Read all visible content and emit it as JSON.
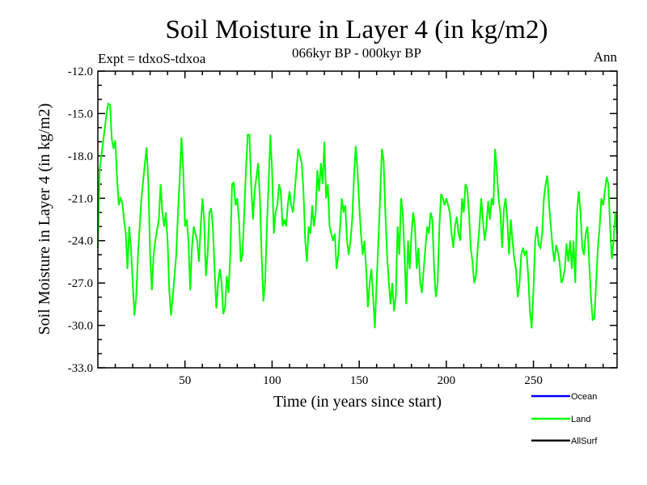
{
  "chart_data": {
    "type": "line",
    "title": "Soil Moisture in Layer 4 (in kg/m2)",
    "subtitle": "066kyr BP - 000kyr BP",
    "left_note": "Expt = tdxoS-tdxoa",
    "right_note": "Ann",
    "xlabel": "Time (in years since start)",
    "ylabel": "Soil Moisture in Layer 4 (in kg/m2)",
    "xlim": [
      0,
      298
    ],
    "ylim": [
      -33,
      -12
    ],
    "xticks": [
      50,
      100,
      150,
      200,
      250
    ],
    "xtick_labels": [
      "50",
      "100",
      "150",
      "200",
      "250"
    ],
    "yticks": [
      -12,
      -15,
      -18,
      -21,
      -24,
      -27,
      -30,
      -33
    ],
    "ytick_labels": [
      "-12.0",
      "-15.0",
      "-18.0",
      "-21.0",
      "-24.0",
      "-27.0",
      "-30.0",
      "-33.0"
    ],
    "legend": {
      "placement": "bottom-right",
      "entries": [
        {
          "name": "Ocean",
          "color": "#0000ff"
        },
        {
          "name": "Land",
          "color": "#00ff00"
        },
        {
          "name": "AllSurf",
          "color": "#000000"
        }
      ]
    },
    "series": [
      {
        "name": "Land",
        "color": "#00ff00",
        "points": [
          [
            0,
            -24.5
          ],
          [
            1,
            -19
          ],
          [
            3,
            -17
          ],
          [
            5,
            -15
          ],
          [
            6,
            -14.3
          ],
          [
            7,
            -14.4
          ],
          [
            8,
            -16.8
          ],
          [
            9,
            -17.5
          ],
          [
            10,
            -16.9
          ],
          [
            11,
            -19.5
          ],
          [
            12,
            -21.5
          ],
          [
            13,
            -21
          ],
          [
            14,
            -21.3
          ],
          [
            15,
            -22.5
          ],
          [
            16,
            -23.5
          ],
          [
            17,
            -26
          ],
          [
            18,
            -23
          ],
          [
            19,
            -24.5
          ],
          [
            20,
            -27
          ],
          [
            21,
            -29.3
          ],
          [
            22,
            -28
          ],
          [
            23,
            -25
          ],
          [
            25,
            -21
          ],
          [
            27,
            -18.5
          ],
          [
            28,
            -17.4
          ],
          [
            29,
            -20
          ],
          [
            30,
            -25
          ],
          [
            31,
            -27.5
          ],
          [
            32,
            -25
          ],
          [
            33,
            -24
          ],
          [
            35,
            -22.5
          ],
          [
            36,
            -20
          ],
          [
            37,
            -22
          ],
          [
            38,
            -23
          ],
          [
            39,
            -22
          ],
          [
            40,
            -24
          ],
          [
            41,
            -27.5
          ],
          [
            42,
            -29.3
          ],
          [
            43,
            -28
          ],
          [
            45,
            -25
          ],
          [
            46,
            -22
          ],
          [
            47,
            -19.5
          ],
          [
            48,
            -16.7
          ],
          [
            49,
            -19
          ],
          [
            50,
            -23
          ],
          [
            51,
            -22.5
          ],
          [
            52,
            -24
          ],
          [
            53,
            -27.5
          ],
          [
            54,
            -24.5
          ],
          [
            55,
            -23
          ],
          [
            57,
            -24
          ],
          [
            58,
            -25.5
          ],
          [
            59,
            -23
          ],
          [
            60,
            -21
          ],
          [
            61,
            -22.5
          ],
          [
            62,
            -26.5
          ],
          [
            63,
            -25
          ],
          [
            64,
            -22
          ],
          [
            65,
            -21.7
          ],
          [
            66,
            -23
          ],
          [
            67,
            -26
          ],
          [
            68,
            -28.8
          ],
          [
            69,
            -27
          ],
          [
            70,
            -26
          ],
          [
            71,
            -27
          ],
          [
            72,
            -29.2
          ],
          [
            73,
            -28.7
          ],
          [
            74,
            -26.5
          ],
          [
            75,
            -27.7
          ],
          [
            76,
            -25
          ],
          [
            77,
            -20
          ],
          [
            78,
            -19.9
          ],
          [
            79,
            -21.5
          ],
          [
            80,
            -21
          ],
          [
            81,
            -22.5
          ],
          [
            82,
            -25.5
          ],
          [
            83,
            -25
          ],
          [
            84,
            -22
          ],
          [
            85,
            -19
          ],
          [
            86,
            -16.5
          ],
          [
            87,
            -16.5
          ],
          [
            88,
            -20
          ],
          [
            89,
            -22.5
          ],
          [
            90,
            -20.5
          ],
          [
            91,
            -19.5
          ],
          [
            92,
            -18.5
          ],
          [
            93,
            -21
          ],
          [
            94,
            -25
          ],
          [
            95,
            -28.3
          ],
          [
            96,
            -27
          ],
          [
            97,
            -23
          ],
          [
            98,
            -20
          ],
          [
            99,
            -16.5
          ],
          [
            100,
            -19
          ],
          [
            101,
            -23.5
          ],
          [
            102,
            -22
          ],
          [
            103,
            -21.5
          ],
          [
            104,
            -20
          ],
          [
            105,
            -20.5
          ],
          [
            106,
            -23
          ],
          [
            107,
            -22.5
          ],
          [
            108,
            -23
          ],
          [
            109,
            -21.5
          ],
          [
            110,
            -20.5
          ],
          [
            111,
            -21.5
          ],
          [
            112,
            -22
          ],
          [
            113,
            -20.5
          ],
          [
            114,
            -19
          ],
          [
            115,
            -17.5
          ],
          [
            116,
            -18
          ],
          [
            117,
            -18.5
          ],
          [
            118,
            -20.5
          ],
          [
            119,
            -24
          ],
          [
            120,
            -25.5
          ],
          [
            121,
            -23
          ],
          [
            122,
            -23.5
          ],
          [
            123,
            -21.5
          ],
          [
            124,
            -23
          ],
          [
            125,
            -22
          ],
          [
            126,
            -19
          ],
          [
            127,
            -20.5
          ],
          [
            128,
            -18.5
          ],
          [
            129,
            -20
          ],
          [
            130,
            -17
          ],
          [
            131,
            -21
          ],
          [
            132,
            -20
          ],
          [
            133,
            -23
          ],
          [
            135,
            -24
          ],
          [
            136,
            -23.5
          ],
          [
            137,
            -26
          ],
          [
            138,
            -25
          ],
          [
            139,
            -23
          ],
          [
            140,
            -21
          ],
          [
            141,
            -22
          ],
          [
            142,
            -21.5
          ],
          [
            143,
            -24
          ],
          [
            144,
            -25
          ],
          [
            145,
            -24
          ],
          [
            146,
            -22.5
          ],
          [
            147,
            -19.5
          ],
          [
            148,
            -17.3
          ],
          [
            149,
            -19
          ],
          [
            150,
            -21.5
          ],
          [
            151,
            -23.5
          ],
          [
            152,
            -25
          ],
          [
            153,
            -24
          ],
          [
            154,
            -26
          ],
          [
            155,
            -28.7
          ],
          [
            156,
            -27
          ],
          [
            157,
            -26
          ],
          [
            158,
            -28
          ],
          [
            159,
            -30.2
          ],
          [
            160,
            -27
          ],
          [
            161,
            -24
          ],
          [
            162,
            -21
          ],
          [
            163,
            -17.5
          ],
          [
            164,
            -18.3
          ],
          [
            165,
            -22
          ],
          [
            166,
            -25
          ],
          [
            167,
            -27
          ],
          [
            168,
            -28.5
          ],
          [
            169,
            -27
          ],
          [
            170,
            -29
          ],
          [
            171,
            -28
          ],
          [
            172,
            -23
          ],
          [
            173,
            -25
          ],
          [
            174,
            -21
          ],
          [
            175,
            -22
          ],
          [
            176,
            -25
          ],
          [
            177,
            -28.5
          ],
          [
            178,
            -24
          ],
          [
            179,
            -26
          ],
          [
            180,
            -23.5
          ],
          [
            181,
            -22
          ],
          [
            182,
            -23
          ],
          [
            183,
            -26
          ],
          [
            184,
            -24.5
          ],
          [
            185,
            -27
          ],
          [
            186,
            -27.7
          ],
          [
            187,
            -26
          ],
          [
            188,
            -24.5
          ],
          [
            189,
            -23
          ],
          [
            190,
            -23.5
          ],
          [
            191,
            -22
          ],
          [
            192,
            -22.5
          ],
          [
            193,
            -26
          ],
          [
            194,
            -28
          ],
          [
            195,
            -27
          ],
          [
            196,
            -23
          ],
          [
            197,
            -20.7
          ],
          [
            198,
            -21
          ],
          [
            199,
            -21.5
          ],
          [
            200,
            -21
          ],
          [
            202,
            -22
          ],
          [
            203,
            -23.5
          ],
          [
            204,
            -24.5
          ],
          [
            205,
            -23
          ],
          [
            206,
            -22.3
          ],
          [
            207,
            -23.5
          ],
          [
            208,
            -24
          ],
          [
            209,
            -21
          ],
          [
            210,
            -22
          ],
          [
            211,
            -20
          ],
          [
            212,
            -20.3
          ],
          [
            213,
            -22
          ],
          [
            214,
            -24.5
          ],
          [
            215,
            -25.5
          ],
          [
            216,
            -27
          ],
          [
            217,
            -26.5
          ],
          [
            218,
            -24.5
          ],
          [
            219,
            -23
          ],
          [
            220,
            -21
          ],
          [
            221,
            -22.5
          ],
          [
            222,
            -24
          ],
          [
            223,
            -23
          ],
          [
            224,
            -21.2
          ],
          [
            225,
            -22.5
          ],
          [
            226,
            -21
          ],
          [
            227,
            -21.5
          ],
          [
            228,
            -17.5
          ],
          [
            229,
            -19
          ],
          [
            230,
            -21
          ],
          [
            231,
            -22
          ],
          [
            232,
            -24.5
          ],
          [
            233,
            -21.8
          ],
          [
            234,
            -21
          ],
          [
            235,
            -22.5
          ],
          [
            236,
            -25
          ],
          [
            237,
            -22.5
          ],
          [
            238,
            -24
          ],
          [
            239,
            -25.3
          ],
          [
            240,
            -26
          ],
          [
            241,
            -28
          ],
          [
            242,
            -27
          ],
          [
            243,
            -25
          ],
          [
            244,
            -24.5
          ],
          [
            245,
            -25
          ],
          [
            246,
            -24.7
          ],
          [
            247,
            -26.5
          ],
          [
            248,
            -29
          ],
          [
            249,
            -30.2
          ],
          [
            250,
            -27.5
          ],
          [
            251,
            -24
          ],
          [
            252,
            -23
          ],
          [
            253,
            -24.3
          ],
          [
            254,
            -24.5
          ],
          [
            255,
            -23.5
          ],
          [
            256,
            -21
          ],
          [
            257,
            -20
          ],
          [
            258,
            -19.4
          ],
          [
            259,
            -21.5
          ],
          [
            260,
            -23
          ],
          [
            261,
            -24.5
          ],
          [
            262,
            -25.5
          ],
          [
            263,
            -24.3
          ],
          [
            264,
            -24.8
          ],
          [
            265,
            -25.5
          ],
          [
            266,
            -27
          ],
          [
            267,
            -26.7
          ],
          [
            268,
            -26
          ],
          [
            269,
            -24.2
          ],
          [
            270,
            -25.5
          ],
          [
            271,
            -24
          ],
          [
            272,
            -26
          ],
          [
            273,
            -24
          ],
          [
            274,
            -27
          ],
          [
            275,
            -22
          ],
          [
            276,
            -20.5
          ],
          [
            277,
            -22
          ],
          [
            278,
            -24.5
          ],
          [
            279,
            -25
          ],
          [
            280,
            -23.5
          ],
          [
            281,
            -23
          ],
          [
            282,
            -25.5
          ],
          [
            283,
            -28
          ],
          [
            284,
            -29.6
          ],
          [
            285,
            -29.5
          ],
          [
            286,
            -27
          ],
          [
            287,
            -24.5
          ],
          [
            288,
            -23
          ],
          [
            289,
            -21
          ],
          [
            290,
            -21.5
          ],
          [
            291,
            -20.5
          ],
          [
            292,
            -19.5
          ],
          [
            293,
            -20
          ],
          [
            294,
            -23
          ],
          [
            295,
            -25.3
          ],
          [
            296,
            -24
          ],
          [
            297,
            -22
          ],
          [
            298,
            -23.5
          ]
        ]
      }
    ]
  }
}
